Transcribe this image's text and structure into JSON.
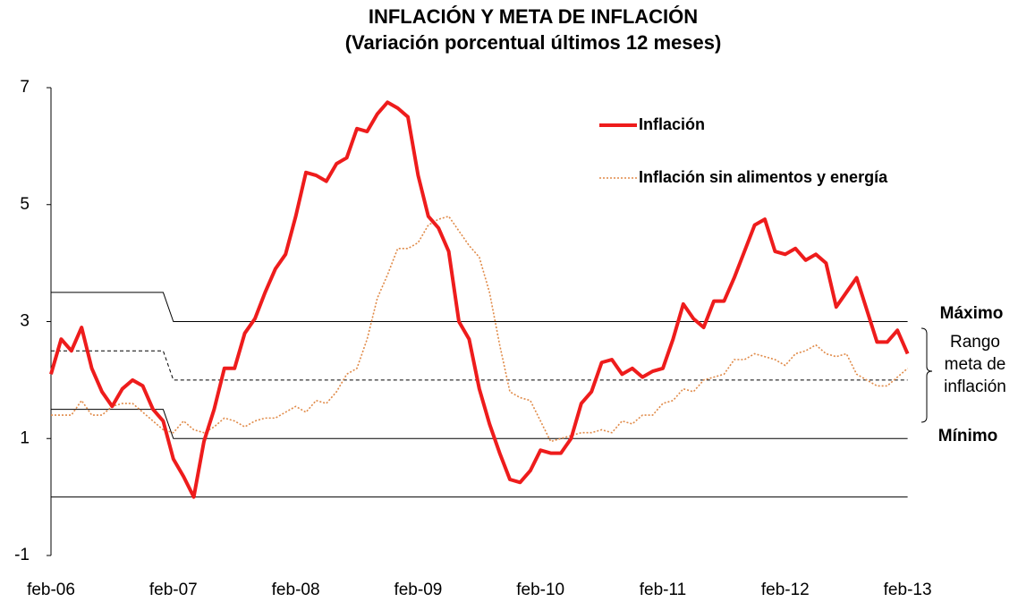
{
  "chart_data": {
    "type": "line",
    "title": [
      "INFLACIÓN Y META DE INFLACIÓN",
      "(Variación porcentual últimos 12 meses)"
    ],
    "categories": [
      "feb-06",
      null,
      null,
      null,
      null,
      null,
      null,
      null,
      null,
      null,
      null,
      null,
      "feb-07",
      null,
      null,
      null,
      null,
      null,
      null,
      null,
      null,
      null,
      null,
      null,
      "feb-08",
      null,
      null,
      null,
      null,
      null,
      null,
      null,
      null,
      null,
      null,
      null,
      "feb-09",
      null,
      null,
      null,
      null,
      null,
      null,
      null,
      null,
      null,
      null,
      null,
      "feb-10",
      null,
      null,
      null,
      null,
      null,
      null,
      null,
      null,
      null,
      null,
      null,
      "feb-11",
      null,
      null,
      null,
      null,
      null,
      null,
      null,
      null,
      null,
      null,
      null,
      "feb-12",
      null,
      null,
      null,
      null,
      null,
      null,
      null,
      null,
      null,
      null,
      null,
      "feb-13"
    ],
    "ylim": [
      -1,
      7
    ],
    "yticks": [
      -1,
      1,
      3,
      5,
      7
    ],
    "series": [
      {
        "name": "Inflación",
        "color": "#ee1c1c",
        "style": "solid",
        "width": 4,
        "legend": true,
        "values": [
          2.1,
          2.7,
          2.5,
          2.9,
          2.2,
          1.8,
          1.55,
          1.85,
          2.0,
          1.9,
          1.5,
          1.3,
          0.65,
          0.35,
          0.0,
          0.95,
          1.5,
          2.2,
          2.2,
          2.8,
          3.05,
          3.5,
          3.9,
          4.15,
          4.8,
          5.55,
          5.5,
          5.4,
          5.7,
          5.8,
          6.3,
          6.25,
          6.55,
          6.75,
          6.65,
          6.5,
          5.5,
          4.8,
          4.6,
          4.2,
          3.0,
          2.7,
          1.85,
          1.25,
          0.75,
          0.3,
          0.25,
          0.45,
          0.8,
          0.75,
          0.75,
          1.0,
          1.6,
          1.8,
          2.3,
          2.35,
          2.1,
          2.2,
          2.05,
          2.15,
          2.2,
          2.7,
          3.3,
          3.05,
          2.9,
          3.35,
          3.35,
          3.75,
          4.2,
          4.65,
          4.75,
          4.2,
          4.15,
          4.25,
          4.05,
          4.15,
          4.0,
          3.25,
          3.5,
          3.75,
          3.2,
          2.65,
          2.65,
          2.85,
          2.45
        ]
      },
      {
        "name": "Inflación sin alimentos y energía",
        "color": "#e08a48",
        "style": "dotted",
        "width": 1.6,
        "legend": true,
        "values": [
          1.4,
          1.4,
          1.4,
          1.65,
          1.4,
          1.4,
          1.55,
          1.6,
          1.6,
          1.45,
          1.3,
          1.15,
          1.1,
          1.3,
          1.15,
          1.1,
          1.2,
          1.35,
          1.3,
          1.2,
          1.3,
          1.35,
          1.35,
          1.45,
          1.55,
          1.45,
          1.65,
          1.6,
          1.8,
          2.1,
          2.2,
          2.7,
          3.4,
          3.8,
          4.25,
          4.25,
          4.35,
          4.65,
          4.75,
          4.8,
          4.55,
          4.3,
          4.1,
          3.5,
          2.6,
          1.8,
          1.7,
          1.65,
          1.3,
          0.95,
          1.0,
          1.05,
          1.1,
          1.1,
          1.15,
          1.1,
          1.3,
          1.25,
          1.4,
          1.4,
          1.6,
          1.65,
          1.85,
          1.8,
          2.0,
          2.05,
          2.1,
          2.35,
          2.35,
          2.45,
          2.4,
          2.35,
          2.25,
          2.45,
          2.5,
          2.6,
          2.45,
          2.4,
          2.45,
          2.1,
          2.0,
          1.9,
          1.9,
          2.05,
          2.2
        ]
      },
      {
        "color": "#000000",
        "style": "solid",
        "width": 1,
        "values": [
          3.5,
          3.5,
          3.5,
          3.5,
          3.5,
          3.5,
          3.5,
          3.5,
          3.5,
          3.5,
          3.5,
          3.5,
          3,
          3,
          3,
          3,
          3,
          3,
          3,
          3,
          3,
          3,
          3,
          3,
          3,
          3,
          3,
          3,
          3,
          3,
          3,
          3,
          3,
          3,
          3,
          3,
          3,
          3,
          3,
          3,
          3,
          3,
          3,
          3,
          3,
          3,
          3,
          3,
          3,
          3,
          3,
          3,
          3,
          3,
          3,
          3,
          3,
          3,
          3,
          3,
          3,
          3,
          3,
          3,
          3,
          3,
          3,
          3,
          3,
          3,
          3,
          3,
          3,
          3,
          3,
          3,
          3,
          3,
          3,
          3,
          3,
          3,
          3,
          3,
          3
        ]
      },
      {
        "color": "#000000",
        "style": "dashed",
        "width": 1,
        "values": [
          2.5,
          2.5,
          2.5,
          2.5,
          2.5,
          2.5,
          2.5,
          2.5,
          2.5,
          2.5,
          2.5,
          2.5,
          2,
          2,
          2,
          2,
          2,
          2,
          2,
          2,
          2,
          2,
          2,
          2,
          2,
          2,
          2,
          2,
          2,
          2,
          2,
          2,
          2,
          2,
          2,
          2,
          2,
          2,
          2,
          2,
          2,
          2,
          2,
          2,
          2,
          2,
          2,
          2,
          2,
          2,
          2,
          2,
          2,
          2,
          2,
          2,
          2,
          2,
          2,
          2,
          2,
          2,
          2,
          2,
          2,
          2,
          2,
          2,
          2,
          2,
          2,
          2,
          2,
          2,
          2,
          2,
          2,
          2,
          2,
          2,
          2,
          2,
          2,
          2,
          2
        ]
      },
      {
        "color": "#000000",
        "style": "solid",
        "width": 1,
        "values": [
          1.5,
          1.5,
          1.5,
          1.5,
          1.5,
          1.5,
          1.5,
          1.5,
          1.5,
          1.5,
          1.5,
          1.5,
          1,
          1,
          1,
          1,
          1,
          1,
          1,
          1,
          1,
          1,
          1,
          1,
          1,
          1,
          1,
          1,
          1,
          1,
          1,
          1,
          1,
          1,
          1,
          1,
          1,
          1,
          1,
          1,
          1,
          1,
          1,
          1,
          1,
          1,
          1,
          1,
          1,
          1,
          1,
          1,
          1,
          1,
          1,
          1,
          1,
          1,
          1,
          1,
          1,
          1,
          1,
          1,
          1,
          1,
          1,
          1,
          1,
          1,
          1,
          1,
          1,
          1,
          1,
          1,
          1,
          1,
          1,
          1,
          1,
          1,
          1,
          1,
          1
        ]
      },
      {
        "color": "#000000",
        "style": "solid",
        "width": 1,
        "values": [
          0,
          0,
          0,
          0,
          0,
          0,
          0,
          0,
          0,
          0,
          0,
          0,
          0,
          0,
          0,
          0,
          0,
          0,
          0,
          0,
          0,
          0,
          0,
          0,
          0,
          0,
          0,
          0,
          0,
          0,
          0,
          0,
          0,
          0,
          0,
          0,
          0,
          0,
          0,
          0,
          0,
          0,
          0,
          0,
          0,
          0,
          0,
          0,
          0,
          0,
          0,
          0,
          0,
          0,
          0,
          0,
          0,
          0,
          0,
          0,
          0,
          0,
          0,
          0,
          0,
          0,
          0,
          0,
          0,
          0,
          0,
          0,
          0,
          0,
          0,
          0,
          0,
          0,
          0,
          0,
          0,
          0,
          0,
          0,
          0
        ]
      }
    ],
    "annotations": [
      "Máximo",
      [
        "Rango",
        "meta de",
        "inflación"
      ],
      "Mínimo"
    ]
  }
}
